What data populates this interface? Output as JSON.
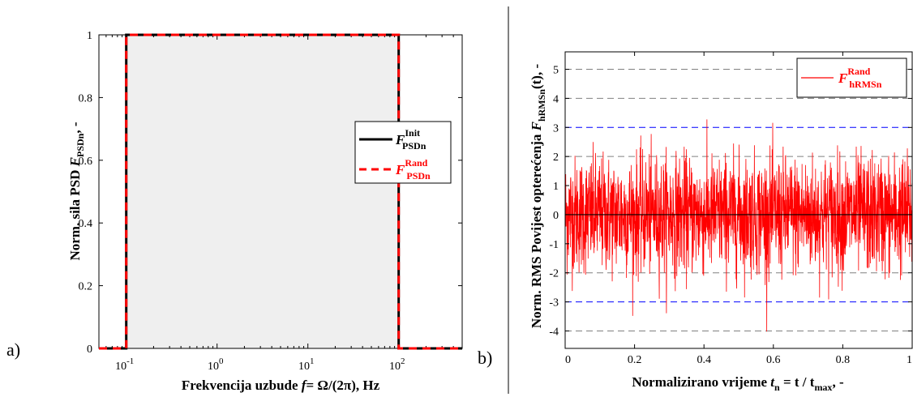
{
  "panel_labels": [
    "a)",
    "b)"
  ],
  "colors": {
    "init": "#000000",
    "rand": "#ff0000",
    "fill": "#efefef",
    "dash_grid": "#808080",
    "blue_line": "#0000ff"
  },
  "chart_data": [
    {
      "type": "line",
      "panel": "a)",
      "x_scale": "log",
      "xlim": [
        0.05,
        500
      ],
      "ylim": [
        0,
        1
      ],
      "xlabel": {
        "text": "Frekvencija uzbude ",
        "var": "f",
        "expr": "= Ω/(2π), Hz"
      },
      "ylabel": {
        "text": "Norm. sila PSD  ",
        "var": "F",
        "sub": "PSDn",
        "tail": ", -"
      },
      "xticks": [
        {
          "value": 0.1,
          "base": "10",
          "exp": "-1"
        },
        {
          "value": 1,
          "base": "10",
          "exp": "0"
        },
        {
          "value": 10,
          "base": "10",
          "exp": "1"
        },
        {
          "value": 100,
          "base": "10",
          "exp": "2"
        }
      ],
      "yticks": [
        "0",
        "0.2",
        "0.4",
        "0.6",
        "0.8",
        "1"
      ],
      "legend_position": "right",
      "series": [
        {
          "name": "F",
          "sup": "Init",
          "sub": "PSDn",
          "style": "solid",
          "color": "#000000",
          "x": [
            0.05,
            0.1,
            0.1,
            100,
            100,
            500
          ],
          "y": [
            0,
            0,
            1,
            1,
            0,
            0
          ]
        },
        {
          "name": "F",
          "sup": "Rand",
          "sub": "PSDn",
          "style": "dashed",
          "color": "#ff0000",
          "x": [
            0.05,
            0.1,
            0.1,
            100,
            100,
            500
          ],
          "y": [
            0,
            0,
            1,
            1,
            0,
            0
          ]
        }
      ]
    },
    {
      "type": "line",
      "panel": "b)",
      "xlim": [
        0,
        1
      ],
      "ylim": [
        -4.6,
        5.6
      ],
      "xlabel": {
        "text": "Normalizirano vrijeme ",
        "var": "t",
        "sub": "n",
        "expr": " =  t / t",
        "sub2": "max",
        "tail": ", -"
      },
      "ylabel": {
        "text": "Norm. RMS Povijest opterećenja  ",
        "var": "F",
        "sub": "hRMSn",
        "tail": "(t), -"
      },
      "xticks": [
        "0",
        "0.2",
        "0.4",
        "0.6",
        "0.8",
        "1"
      ],
      "yticks": [
        "-4",
        "-3",
        "-2",
        "-1",
        "0",
        "1",
        "2",
        "3",
        "4",
        "5"
      ],
      "grey_dashed_y": [
        -4,
        -2,
        2,
        4,
        5
      ],
      "blue_dashed_y": [
        -3,
        3
      ],
      "zero_line_y": 0,
      "legend_position": "top-right",
      "series": [
        {
          "name": "F",
          "sup": "Rand",
          "sub": "hRMSn",
          "color": "#ff0000",
          "distribution": "gaussian",
          "rms": 1,
          "min": -4.6,
          "max": 4.3,
          "samples": 1800
        }
      ]
    }
  ]
}
